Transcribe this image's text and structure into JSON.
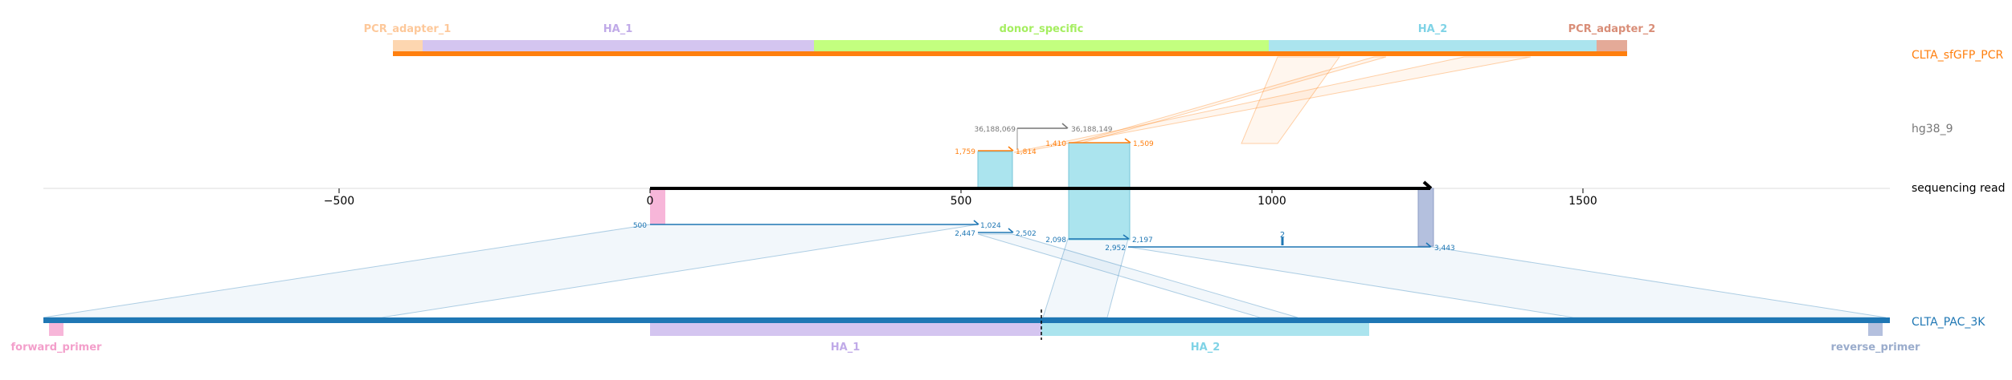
{
  "scale": {
    "ticks": [
      {
        "value": -500,
        "label": "−500"
      },
      {
        "value": 0,
        "label": "0"
      },
      {
        "value": 500,
        "label": "500"
      },
      {
        "value": 1000,
        "label": "1000"
      },
      {
        "value": 1500,
        "label": "1500"
      }
    ]
  },
  "tracks": {
    "top": "CLTA_sfGFP_PCR",
    "hg": "hg38_9",
    "read": "sequencing read",
    "bottom": "CLTA_PAC_3K"
  },
  "colors": {
    "orange": "#ff7f0e",
    "blue": "#1f77b4",
    "gray": "#777777",
    "cyan": "#abe4ee",
    "lavender": "#d4c5f0",
    "green": "#c3ff7f",
    "peach": "#fdd6b0",
    "salmon": "#e4aa98",
    "pink": "#f7b6d9",
    "steel": "#b4c0de"
  },
  "top_features": [
    {
      "name": "PCR_adapter_1",
      "color": "#fdd6b0",
      "label_color": "#fdc89a"
    },
    {
      "name": "HA_1",
      "color": "#d4c5f0",
      "label_color": "#c0aae8"
    },
    {
      "name": "donor_specific",
      "color": "#c3ff7f",
      "label_color": "#a5ee60"
    },
    {
      "name": "HA_2",
      "color": "#abe4ee",
      "label_color": "#7fd3e6"
    },
    {
      "name": "PCR_adapter_2",
      "color": "#e4aa98",
      "label_color": "#d98e78"
    }
  ],
  "bottom_features": [
    {
      "name": "forward_primer",
      "color": "#f7b6d9",
      "label_color": "#f39fcb"
    },
    {
      "name": "HA_1",
      "color": "#d4c5f0",
      "label_color": "#c0aae8"
    },
    {
      "name": "HA_2",
      "color": "#abe4ee",
      "label_color": "#7fd3e6"
    },
    {
      "name": "reverse_primer",
      "color": "#b4c0de",
      "label_color": "#9aaccc"
    }
  ],
  "hg_alignment": {
    "start": "36,188,069",
    "end": "36,188,149"
  },
  "orange_alignments": [
    {
      "left": "1,759",
      "right": "1,814"
    },
    {
      "left": "1,410",
      "right": "1,509"
    }
  ],
  "blue_alignments": [
    {
      "left": "500",
      "right": "1,024"
    },
    {
      "left": "2,447",
      "right": "2,502"
    },
    {
      "left": "2,098",
      "right": "2,197"
    },
    {
      "left": "2,952",
      "right": "3,443"
    }
  ],
  "insertion_label": "2"
}
